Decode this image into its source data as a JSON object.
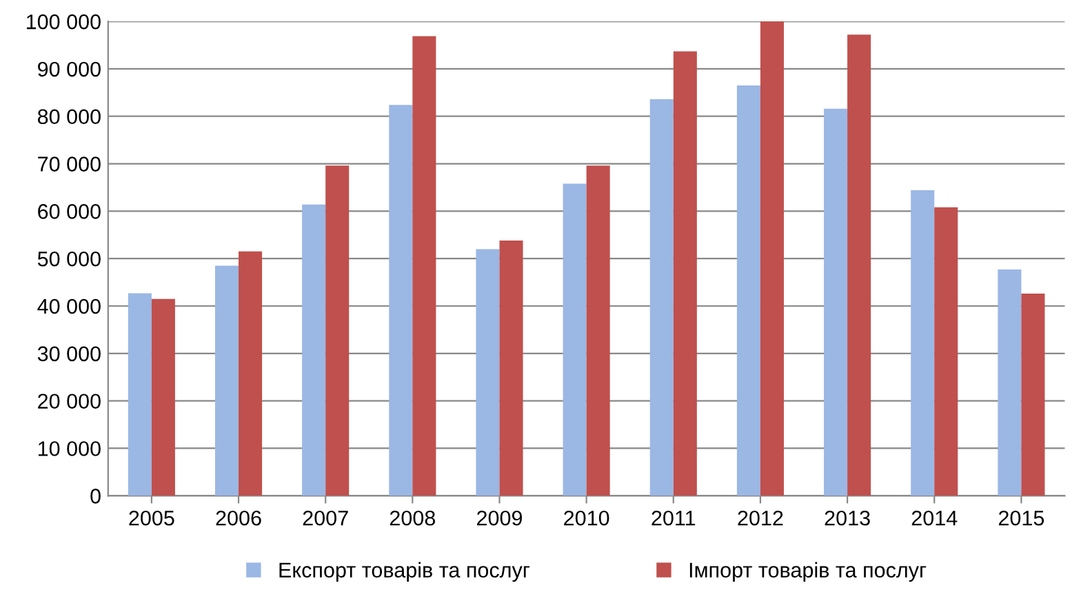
{
  "chart_data": {
    "type": "bar",
    "categories": [
      "2005",
      "2006",
      "2007",
      "2008",
      "2009",
      "2010",
      "2011",
      "2012",
      "2013",
      "2014",
      "2015"
    ],
    "series": [
      {
        "name": "Експорт товарів та послуг",
        "color": "#9bb7e4",
        "values": [
          42700,
          48500,
          61400,
          82400,
          52000,
          65800,
          83600,
          86500,
          81600,
          64400,
          47700
        ]
      },
      {
        "name": "Імпорт товарів та послуг",
        "color": "#c0504d",
        "values": [
          41500,
          51500,
          69600,
          96900,
          53800,
          69600,
          93700,
          100000,
          97200,
          60800,
          42600
        ]
      }
    ],
    "ylim": [
      0,
      100000
    ],
    "yticks": [
      {
        "value": 0,
        "label": "0"
      },
      {
        "value": 10000,
        "label": "10 000"
      },
      {
        "value": 20000,
        "label": "20 000"
      },
      {
        "value": 30000,
        "label": "30 000"
      },
      {
        "value": 40000,
        "label": "40 000"
      },
      {
        "value": 50000,
        "label": "50 000"
      },
      {
        "value": 60000,
        "label": "60 000"
      },
      {
        "value": 70000,
        "label": "70 000"
      },
      {
        "value": 80000,
        "label": "80 000"
      },
      {
        "value": 90000,
        "label": "90 000"
      },
      {
        "value": 100000,
        "label": "100 000"
      }
    ],
    "grid": "y",
    "legend": "bottom"
  }
}
